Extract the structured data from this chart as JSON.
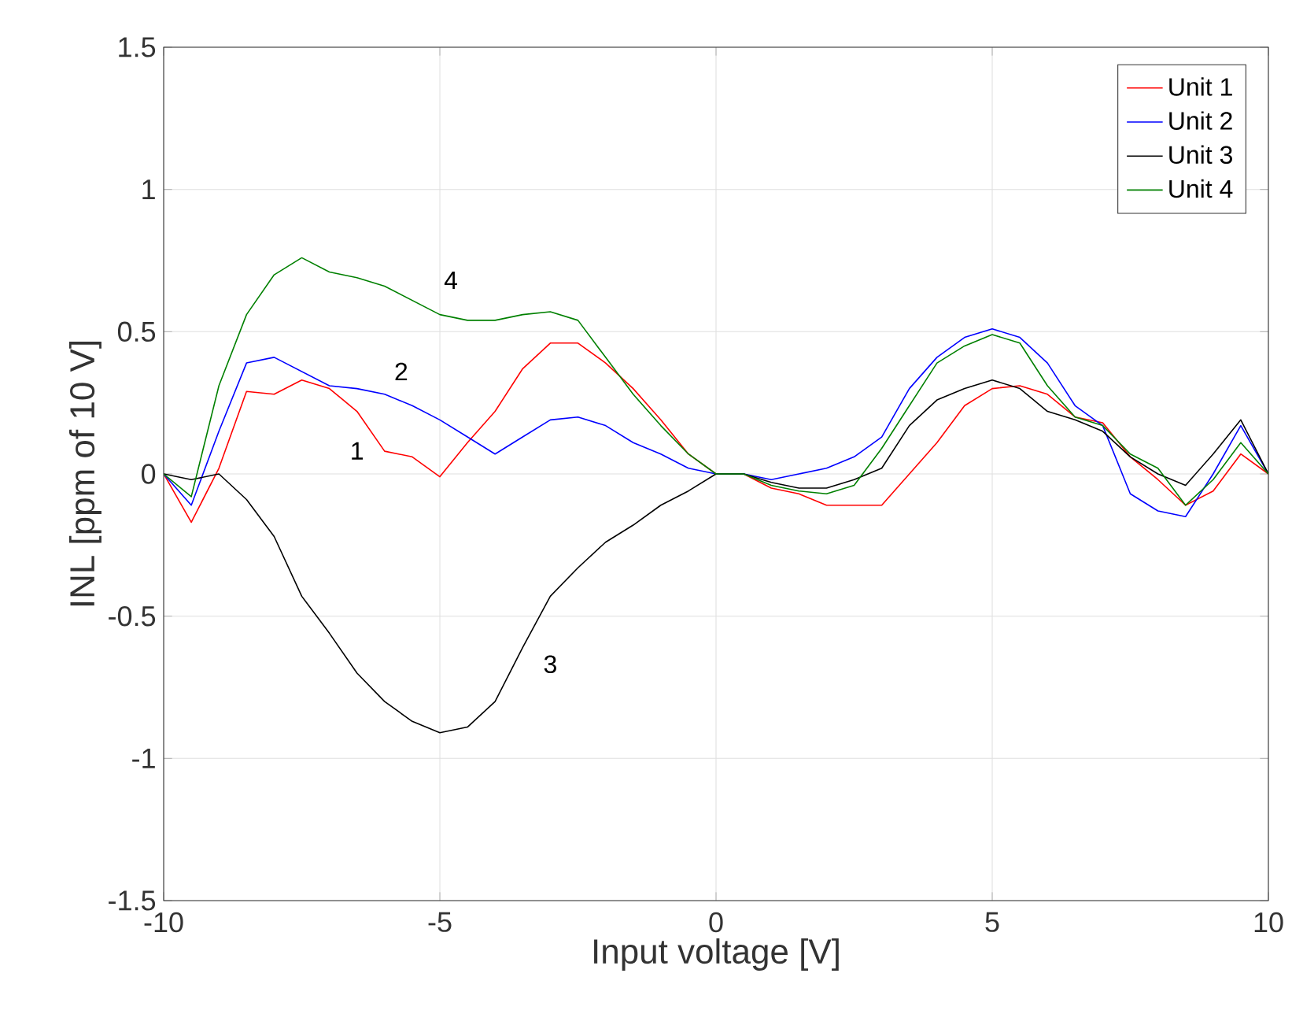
{
  "chart_data": {
    "type": "line",
    "xlabel": "Input voltage [V]",
    "ylabel": "INL [ppm of 10 V]",
    "x": [
      -10,
      -9.5,
      -9,
      -8.5,
      -8,
      -7.5,
      -7,
      -6.5,
      -6,
      -5.5,
      -5,
      -4.5,
      -4,
      -3.5,
      -3,
      -2.5,
      -2,
      -1.5,
      -1,
      -0.5,
      0,
      0.5,
      1,
      1.5,
      2,
      2.5,
      3,
      3.5,
      4,
      4.5,
      5,
      5.5,
      6,
      6.5,
      7,
      7.5,
      8,
      8.5,
      9,
      9.5,
      10
    ],
    "series": [
      {
        "name": "Unit 1",
        "color": "#ff0000",
        "values": [
          0,
          -0.17,
          0.02,
          0.29,
          0.28,
          0.33,
          0.3,
          0.22,
          0.08,
          0.06,
          -0.01,
          0.11,
          0.22,
          0.37,
          0.46,
          0.46,
          0.39,
          0.3,
          0.19,
          0.07,
          0,
          0,
          -0.05,
          -0.07,
          -0.11,
          -0.11,
          -0.11,
          0,
          0.11,
          0.24,
          0.3,
          0.31,
          0.28,
          0.2,
          0.18,
          0.06,
          -0.02,
          -0.11,
          -0.06,
          0.07,
          0
        ]
      },
      {
        "name": "Unit 2",
        "color": "#0000ff",
        "values": [
          0,
          -0.11,
          0.15,
          0.39,
          0.41,
          0.36,
          0.31,
          0.3,
          0.28,
          0.24,
          0.19,
          0.13,
          0.07,
          0.13,
          0.19,
          0.2,
          0.17,
          0.11,
          0.07,
          0.02,
          0,
          0,
          -0.02,
          0,
          0.02,
          0.06,
          0.13,
          0.3,
          0.41,
          0.48,
          0.51,
          0.48,
          0.39,
          0.24,
          0.17,
          -0.07,
          -0.13,
          -0.15,
          0,
          0.17,
          0
        ]
      },
      {
        "name": "Unit 3",
        "color": "#000000",
        "values": [
          0,
          -0.02,
          0,
          -0.09,
          -0.22,
          -0.43,
          -0.56,
          -0.7,
          -0.8,
          -0.87,
          -0.91,
          -0.89,
          -0.8,
          -0.61,
          -0.43,
          -0.33,
          -0.24,
          -0.18,
          -0.11,
          -0.06,
          0,
          0,
          -0.03,
          -0.05,
          -0.05,
          -0.02,
          0.02,
          0.17,
          0.26,
          0.3,
          0.33,
          0.3,
          0.22,
          0.19,
          0.15,
          0.06,
          0,
          -0.04,
          0.07,
          0.19,
          0
        ]
      },
      {
        "name": "Unit 4",
        "color": "#008000",
        "values": [
          0,
          -0.08,
          0.31,
          0.56,
          0.7,
          0.76,
          0.71,
          0.69,
          0.66,
          0.61,
          0.56,
          0.54,
          0.54,
          0.56,
          0.57,
          0.54,
          0.41,
          0.28,
          0.17,
          0.07,
          0,
          0,
          -0.04,
          -0.06,
          -0.07,
          -0.04,
          0.09,
          0.24,
          0.39,
          0.45,
          0.49,
          0.46,
          0.31,
          0.2,
          0.17,
          0.07,
          0.02,
          -0.11,
          -0.02,
          0.11,
          0
        ]
      }
    ],
    "annotations": [
      "1",
      "2",
      "3",
      "4"
    ],
    "xlim": [
      -10,
      10
    ],
    "ylim": [
      -1.5,
      1.5
    ],
    "xticks": [
      -10,
      -5,
      0,
      5,
      10
    ],
    "yticks": [
      -1.5,
      -1,
      -0.5,
      0,
      0.5,
      1,
      1.5
    ],
    "grid": true,
    "legend": "top right",
    "marker": "none",
    "line_style": "solid"
  }
}
